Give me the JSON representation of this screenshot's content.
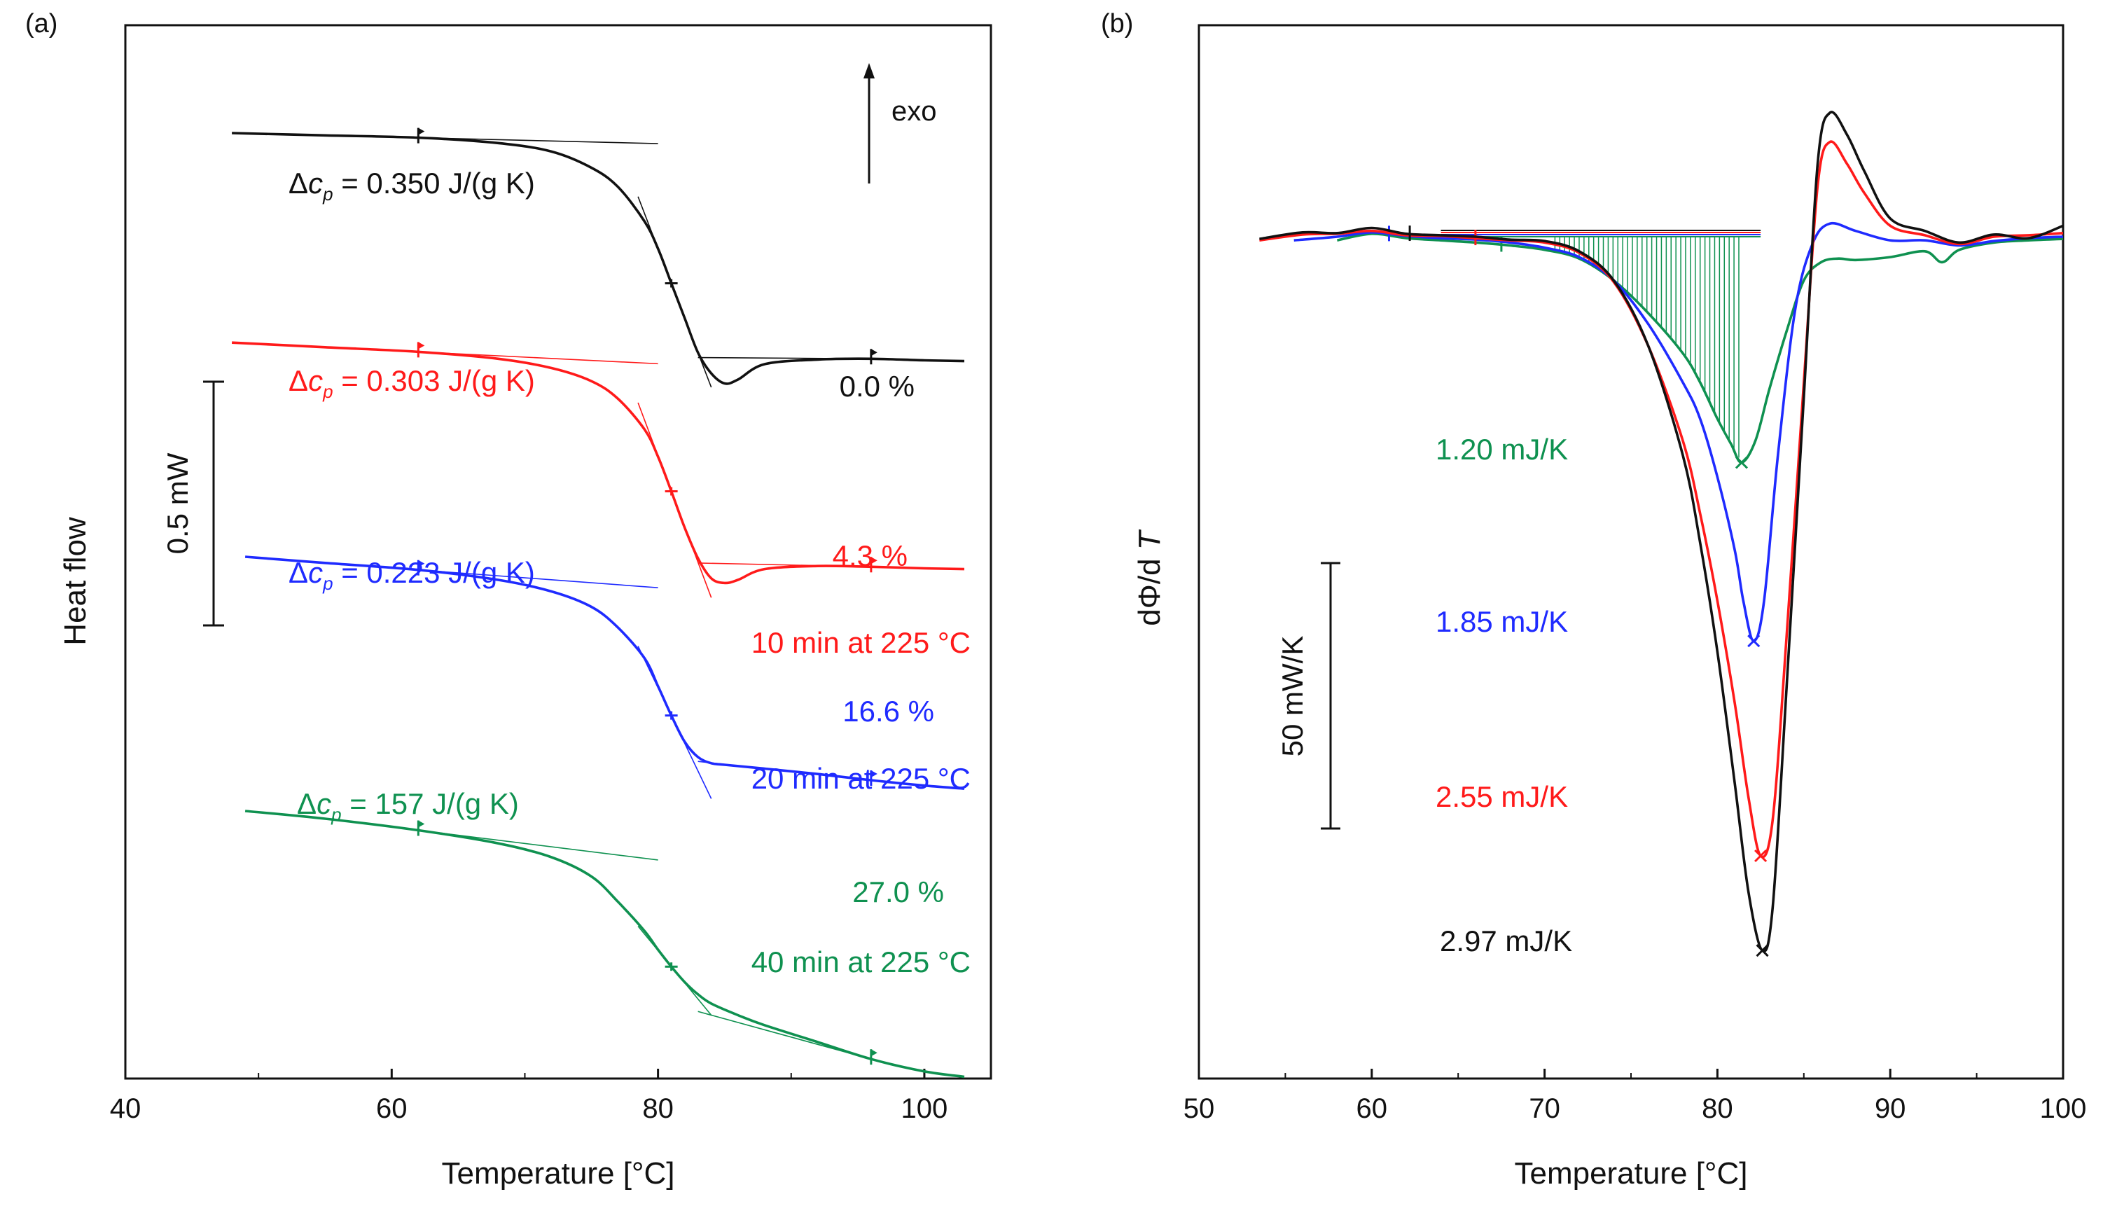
{
  "colors": {
    "black": "#111111",
    "red": "#ff1a1a",
    "blue": "#1f2bff",
    "green": "#0f9150"
  },
  "chart_data": [
    {
      "type": "line",
      "panel_label": "(a)",
      "xlabel": "Temperature [°C]",
      "ylabel": "Heat flow",
      "xlim": [
        40,
        105
      ],
      "xticks": [
        40,
        60,
        80,
        100
      ],
      "grid": false,
      "arrow_label": "exo",
      "scale_bar_label": "0.5 mW",
      "series": [
        {
          "name": "0.0 %",
          "color": "black",
          "delta_cp": "0.350 J/(g K)",
          "crystallinity_label": "0.0 %",
          "condition_label": "",
          "x": [
            48,
            55,
            62,
            68,
            72,
            75,
            77,
            79,
            80,
            81,
            82,
            83,
            84,
            85,
            86,
            88,
            92,
            96,
            100,
            103
          ],
          "y": [
            0.5,
            0.47,
            0.44,
            0.37,
            0.26,
            0.05,
            -0.2,
            -0.65,
            -1.0,
            -1.45,
            -1.9,
            -2.35,
            -2.62,
            -2.75,
            -2.7,
            -2.5,
            -2.44,
            -2.43,
            -2.45,
            -2.46
          ]
        },
        {
          "name": "4.3 %",
          "color": "red",
          "delta_cp": "0.303 J/(g K)",
          "crystallinity_label": "4.3 %",
          "condition_label": "10 min at 225 °C",
          "x": [
            48,
            55,
            62,
            68,
            72,
            75,
            77,
            79,
            80,
            81,
            82,
            83,
            84,
            85,
            86,
            88,
            92,
            96,
            100,
            103
          ],
          "y": [
            -2.22,
            -2.28,
            -2.34,
            -2.43,
            -2.55,
            -2.72,
            -2.95,
            -3.35,
            -3.7,
            -4.15,
            -4.62,
            -5.02,
            -5.28,
            -5.34,
            -5.3,
            -5.16,
            -5.12,
            -5.13,
            -5.15,
            -5.16
          ]
        },
        {
          "name": "16.6 %",
          "color": "blue",
          "delta_cp": "0.223 J/(g K)",
          "crystallinity_label": "16.6 %",
          "condition_label": "20 min at 225 °C",
          "x": [
            49,
            55,
            62,
            68,
            72,
            75,
            77,
            79,
            80,
            81,
            82,
            83,
            84,
            85,
            88,
            92,
            96,
            100,
            103
          ],
          "y": [
            -5.0,
            -5.08,
            -5.17,
            -5.3,
            -5.45,
            -5.65,
            -5.92,
            -6.32,
            -6.68,
            -7.06,
            -7.4,
            -7.6,
            -7.68,
            -7.7,
            -7.75,
            -7.82,
            -7.9,
            -7.97,
            -8.01
          ]
        },
        {
          "name": "27.0 %",
          "color": "green",
          "delta_cp": "157 J/(g K)",
          "crystallinity_label": "27.0 %",
          "condition_label": "40 min at 225 °C",
          "x": [
            49,
            55,
            62,
            68,
            72,
            75,
            77,
            79,
            80,
            81,
            82,
            83,
            84,
            86,
            88,
            92,
            96,
            100,
            103
          ],
          "y": [
            -8.3,
            -8.4,
            -8.55,
            -8.72,
            -8.9,
            -9.15,
            -9.48,
            -9.86,
            -10.1,
            -10.32,
            -10.52,
            -10.68,
            -10.8,
            -10.95,
            -11.08,
            -11.3,
            -11.52,
            -11.68,
            -11.75
          ]
        }
      ]
    },
    {
      "type": "line",
      "panel_label": "(b)",
      "xlabel": "Temperature [°C]",
      "ylabel": "dΦ/dT",
      "xlim": [
        50,
        100
      ],
      "xticks": [
        50,
        60,
        70,
        80,
        90,
        100
      ],
      "grid": false,
      "scale_bar_label": "50 mW/K",
      "series": [
        {
          "name": "2.97 mJ/K",
          "color": "black",
          "label": "2.97 mJ/K",
          "x": [
            53.5,
            56,
            58,
            60,
            62,
            64,
            66,
            68,
            70,
            72,
            74,
            76,
            78,
            79,
            80,
            81,
            81.8,
            82.6,
            83.2,
            84,
            85,
            85.8,
            86.5,
            87.5,
            88.5,
            90,
            92,
            94,
            96,
            98,
            100
          ],
          "y": [
            -0.3,
            0.6,
            0.5,
            1.2,
            0.4,
            0.2,
            0.0,
            -0.4,
            -0.6,
            -2.0,
            -6.0,
            -15.0,
            -30.0,
            -42.0,
            -57.0,
            -75.0,
            -90.0,
            -98.0,
            -92.0,
            -62.0,
            -22.0,
            10.0,
            17.0,
            14.0,
            9.0,
            2.5,
            0.8,
            -0.8,
            0.3,
            -0.2,
            1.5
          ]
        },
        {
          "name": "2.55 mJ/K",
          "color": "red",
          "label": "2.55 mJ/K",
          "x": [
            53.5,
            56,
            58,
            60,
            62,
            64,
            66,
            68,
            70,
            72,
            74,
            76,
            78,
            79,
            80,
            81,
            81.8,
            82.5,
            83.2,
            84,
            85,
            85.8,
            86.5,
            87.5,
            88.5,
            90,
            92,
            94,
            96,
            98,
            100
          ],
          "y": [
            -0.5,
            0.3,
            0.4,
            0.8,
            0.2,
            0.1,
            -0.2,
            -0.5,
            -0.8,
            -2.2,
            -6.2,
            -15.0,
            -28.0,
            -38.0,
            -50.0,
            -64.0,
            -77.0,
            -85.0,
            -80.0,
            -55.0,
            -20.0,
            7.0,
            13.0,
            10.0,
            6.0,
            1.5,
            0.2,
            -1.0,
            0.0,
            0.2,
            0.5
          ]
        },
        {
          "name": "1.85 mJ/K",
          "color": "blue",
          "label": "1.85 mJ/K",
          "x": [
            55.5,
            58,
            60,
            62,
            64,
            66,
            68,
            70,
            72,
            74,
            76,
            78,
            79,
            80,
            81,
            81.5,
            82.1,
            82.7,
            83.5,
            84.5,
            85.5,
            86.5,
            88,
            90,
            92,
            94,
            96,
            98,
            100
          ],
          "y": [
            -0.5,
            0.0,
            0.6,
            0.1,
            -0.2,
            -0.4,
            -0.8,
            -1.5,
            -2.8,
            -6.0,
            -12.0,
            -20.0,
            -25.0,
            -33.0,
            -43.0,
            -50.0,
            -55.5,
            -50.0,
            -30.0,
            -10.0,
            -1.0,
            1.8,
            0.8,
            -0.5,
            -0.5,
            -1.2,
            -0.6,
            -0.2,
            0.0
          ]
        },
        {
          "name": "1.20 mJ/K",
          "color": "green",
          "label": "1.20 mJ/K",
          "x": [
            58,
            60,
            62,
            64,
            66,
            68,
            70,
            72,
            74,
            76,
            78,
            79,
            80,
            80.8,
            81.4,
            82.2,
            83,
            84,
            85,
            86,
            87,
            88,
            90,
            92,
            93,
            94,
            96,
            98,
            100
          ],
          "y": [
            -0.5,
            0.4,
            -0.2,
            -0.5,
            -0.8,
            -1.2,
            -1.8,
            -3.0,
            -6.0,
            -10.5,
            -16.0,
            -20.0,
            -25.0,
            -28.5,
            -31.0,
            -28.0,
            -21.0,
            -13.0,
            -6.0,
            -3.5,
            -3.0,
            -3.2,
            -2.8,
            -2.0,
            -3.5,
            -1.8,
            -0.8,
            -0.5,
            -0.3
          ]
        }
      ]
    }
  ]
}
